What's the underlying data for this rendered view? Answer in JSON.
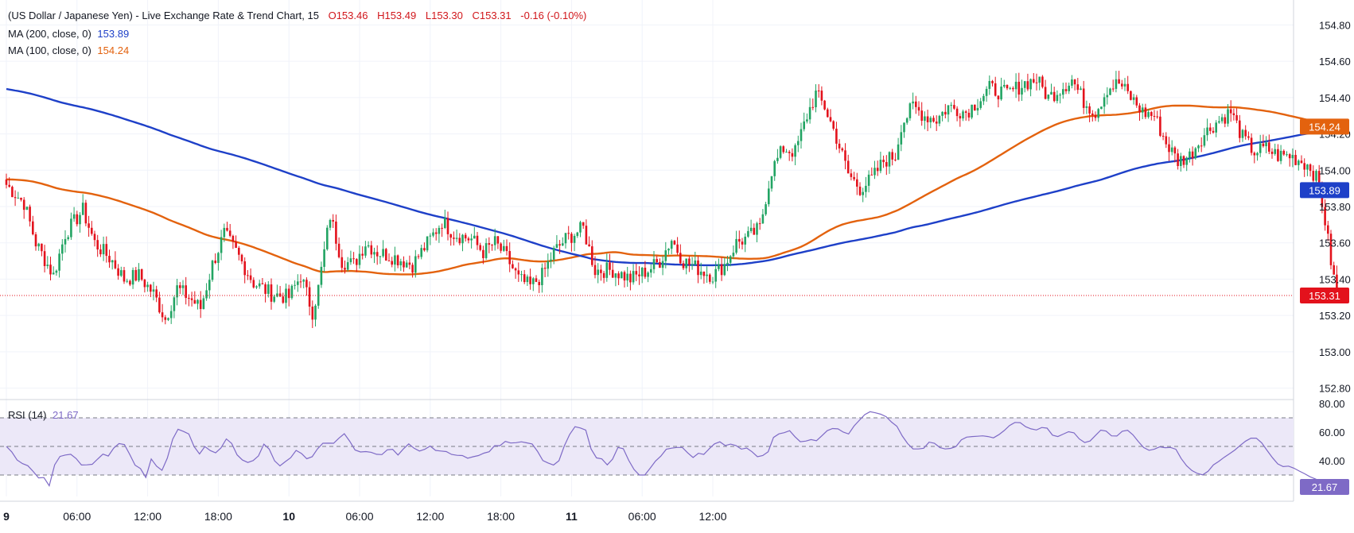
{
  "legend": {
    "title": "(US Dollar / Japanese Yen) - Live Exchange Rate & Trend Chart, 15",
    "open": "O153.46",
    "high": "H153.49",
    "low": "L153.30",
    "close": "C153.31",
    "change": "-0.16 (-0.10%)",
    "ma200_label": "MA (200, close, 0)",
    "ma200_value": "153.89",
    "ma100_label": "MA (100, close, 0)",
    "ma100_value": "154.24",
    "rsi_label": "RSI (14)",
    "rsi_value": "21.67"
  },
  "colors": {
    "up": "#22a463",
    "down": "#e3121c",
    "ma200": "#1e40c8",
    "ma100": "#e3620e",
    "rsi": "#7e6ac6",
    "rsi_band": "#ece8f8",
    "grid": "#f0f3fa",
    "axis_text": "#131722"
  },
  "chart_data": [
    {
      "type": "candlestick",
      "title": "(US Dollar / Japanese Yen) - Live Exchange Rate & Trend Chart, 15",
      "x_tick_labels": [
        "9",
        "06:00",
        "12:00",
        "18:00",
        "10",
        "06:00",
        "12:00",
        "18:00",
        "11",
        "06:00",
        "12:00"
      ],
      "y_tick_labels": [
        "154.80",
        "154.60",
        "154.40",
        "154.20",
        "154.00",
        "153.80",
        "153.60",
        "153.40",
        "153.20",
        "153.00",
        "152.80"
      ],
      "ylim": [
        152.75,
        154.85
      ],
      "last_price": "153.31",
      "ma100_marker": "154.24",
      "ma200_marker": "153.89",
      "close_path": [
        [
          0,
          153.92
        ],
        [
          6,
          153.82
        ],
        [
          10,
          153.6
        ],
        [
          16,
          153.42
        ],
        [
          20,
          153.65
        ],
        [
          26,
          153.78
        ],
        [
          30,
          153.6
        ],
        [
          36,
          153.5
        ],
        [
          40,
          153.4
        ],
        [
          45,
          153.42
        ],
        [
          50,
          153.32
        ],
        [
          54,
          153.18
        ],
        [
          58,
          153.35
        ],
        [
          62,
          153.3
        ],
        [
          66,
          153.24
        ],
        [
          70,
          153.48
        ],
        [
          74,
          153.65
        ],
        [
          78,
          153.55
        ],
        [
          84,
          153.38
        ],
        [
          90,
          153.32
        ],
        [
          96,
          153.3
        ],
        [
          100,
          153.42
        ],
        [
          104,
          153.22
        ],
        [
          106,
          153.35
        ],
        [
          110,
          153.75
        ],
        [
          114,
          153.5
        ],
        [
          118,
          153.48
        ],
        [
          122,
          153.6
        ],
        [
          126,
          153.55
        ],
        [
          132,
          153.52
        ],
        [
          138,
          153.48
        ],
        [
          144,
          153.62
        ],
        [
          148,
          153.72
        ],
        [
          152,
          153.65
        ],
        [
          158,
          153.62
        ],
        [
          162,
          153.55
        ],
        [
          166,
          153.6
        ],
        [
          170,
          153.52
        ],
        [
          174,
          153.4
        ],
        [
          178,
          153.36
        ],
        [
          182,
          153.42
        ],
        [
          186,
          153.55
        ],
        [
          190,
          153.62
        ],
        [
          196,
          153.68
        ],
        [
          200,
          153.45
        ],
        [
          206,
          153.45
        ],
        [
          212,
          153.4
        ],
        [
          218,
          153.45
        ],
        [
          222,
          153.5
        ],
        [
          226,
          153.62
        ],
        [
          230,
          153.5
        ],
        [
          236,
          153.45
        ],
        [
          240,
          153.42
        ],
        [
          244,
          153.48
        ],
        [
          248,
          153.6
        ],
        [
          252,
          153.63
        ],
        [
          256,
          153.68
        ],
        [
          258,
          153.85
        ],
        [
          260,
          154.0
        ],
        [
          264,
          154.12
        ],
        [
          268,
          154.1
        ],
        [
          272,
          154.3
        ],
        [
          275,
          154.42
        ],
        [
          278,
          154.35
        ],
        [
          282,
          154.18
        ],
        [
          286,
          153.98
        ],
        [
          290,
          153.9
        ],
        [
          294,
          153.95
        ],
        [
          298,
          154.05
        ],
        [
          302,
          154.08
        ],
        [
          304,
          154.25
        ],
        [
          308,
          154.35
        ],
        [
          312,
          154.3
        ],
        [
          316,
          154.28
        ],
        [
          320,
          154.35
        ],
        [
          326,
          154.32
        ],
        [
          330,
          154.38
        ],
        [
          334,
          154.45
        ],
        [
          340,
          154.42
        ],
        [
          346,
          154.48
        ],
        [
          350,
          154.5
        ],
        [
          354,
          154.4
        ],
        [
          358,
          154.45
        ],
        [
          362,
          154.5
        ],
        [
          366,
          154.38
        ],
        [
          370,
          154.32
        ],
        [
          374,
          154.45
        ],
        [
          378,
          154.48
        ],
        [
          382,
          154.4
        ],
        [
          386,
          154.32
        ],
        [
          390,
          154.3
        ],
        [
          394,
          154.15
        ],
        [
          398,
          154.05
        ],
        [
          402,
          154.08
        ],
        [
          406,
          154.18
        ],
        [
          410,
          154.25
        ],
        [
          414,
          154.3
        ],
        [
          416,
          154.32
        ],
        [
          420,
          154.18
        ],
        [
          424,
          154.1
        ],
        [
          428,
          154.12
        ],
        [
          432,
          154.08
        ],
        [
          436,
          154.08
        ],
        [
          440,
          154.05
        ],
        [
          443,
          154.02
        ],
        [
          446,
          153.92
        ],
        [
          448,
          153.72
        ],
        [
          450,
          153.5
        ],
        [
          452,
          153.31
        ]
      ]
    },
    {
      "type": "line",
      "title": "RSI (14)",
      "y_tick_labels": [
        "80.00",
        "60.00",
        "40.00"
      ],
      "ylim": [
        15,
        80
      ],
      "reference_lines": [
        70,
        50,
        30
      ],
      "last_value": "21.67",
      "values": [
        50.0,
        46.2,
        40.5,
        38.0,
        36.5,
        32.5,
        28.0,
        28.2,
        22.5,
        37.1,
        43.0,
        44.0,
        44.5,
        41.5,
        37.0,
        37.1,
        37.5,
        41.1,
        44.6,
        43.3,
        48.8,
        52.0,
        51.3,
        44.4,
        36.9,
        34.5,
        28.3,
        41.2,
        36.2,
        33.3,
        41.8,
        55.1,
        62.0,
        60.5,
        58.7,
        49.9,
        44.7,
        49.9,
        47.1,
        45.5,
        48.9,
        55.2,
        52.1,
        44.1,
        40.5,
        38.8,
        40.1,
        43.4,
        51.6,
        48.1,
        39.9,
        36.4,
        39.4,
        42.1,
        47.2,
        45.1,
        41.4,
        42.8,
        48.3,
        52.2,
        52.3,
        52.2,
        55.8,
        58.9,
        53.6,
        47.5,
        46.1,
        46.4,
        45.9,
        44.5,
        44.3,
        47.6,
        48.0,
        44.0,
        48.2,
        51.8,
        48.7,
        46.8,
        48.0,
        50.3,
        47.2,
        46.8,
        46.4,
        44.4,
        43.8,
        43.6,
        41.8,
        42.8,
        43.6,
        45.3,
        46.3,
        50.5,
        50.5,
        53.5,
        52.4,
        52.6,
        53.2,
        52.5,
        51.7,
        46.6,
        40.1,
        38.4,
        37.0,
        40.0,
        50.3,
        58.4,
        63.8,
        62.9,
        61.4,
        48.2,
        42.0,
        41.3,
        37.1,
        41.1,
        49.3,
        48.4,
        40.3,
        33.9,
        30.0,
        30.0,
        34.7,
        39.8,
        43.2,
        48.0,
        48.8,
        49.3,
        49.3,
        45.5,
        42.2,
        45.2,
        44.4,
        48.3,
        51.8,
        53.2,
        50.6,
        51.6,
        50.6,
        48.1,
        48.9,
        46.2,
        42.8,
        43.6,
        46.3,
        56.3,
        58.8,
        59.6,
        61.0,
        56.8,
        53.3,
        53.7,
        54.8,
        54.0,
        57.4,
        61.0,
        62.5,
        62.3,
        60.0,
        58.7,
        64.2,
        68.3,
        72.2,
        74.3,
        73.5,
        72.5,
        70.8,
        67.0,
        64.1,
        57.3,
        52.0,
        48.3,
        48.2,
        48.7,
        53.0,
        52.2,
        49.2,
        48.2,
        48.6,
        49.9,
        54.6,
        56.5,
        56.9,
        57.1,
        57.4,
        56.9,
        56.0,
        58.2,
        61.1,
        64.6,
        66.8,
        66.6,
        63.8,
        62.3,
        61.5,
        63.2,
        62.8,
        57.9,
        56.9,
        58.6,
        60.3,
        59.5,
        55.2,
        52.7,
        53.8,
        57.6,
        61.4,
        60.7,
        57.4,
        57.3,
        60.6,
        61.3,
        58.1,
        53.4,
        49.2,
        47.3,
        48.1,
        49.7,
        49.1,
        49.3,
        48.0,
        41.5,
        36.5,
        33.1,
        31.1,
        30.1,
        32.6,
        37.1,
        39.5,
        42.4,
        44.9,
        47.5,
        50.7,
        53.7,
        55.8,
        55.8,
        52.5,
        47.2,
        42.1,
        37.8,
        35.9,
        36.2,
        34.8,
        32.8,
        30.9,
        28.8,
        27.3,
        25.6,
        24.0,
        22.7,
        21.67
      ]
    }
  ]
}
